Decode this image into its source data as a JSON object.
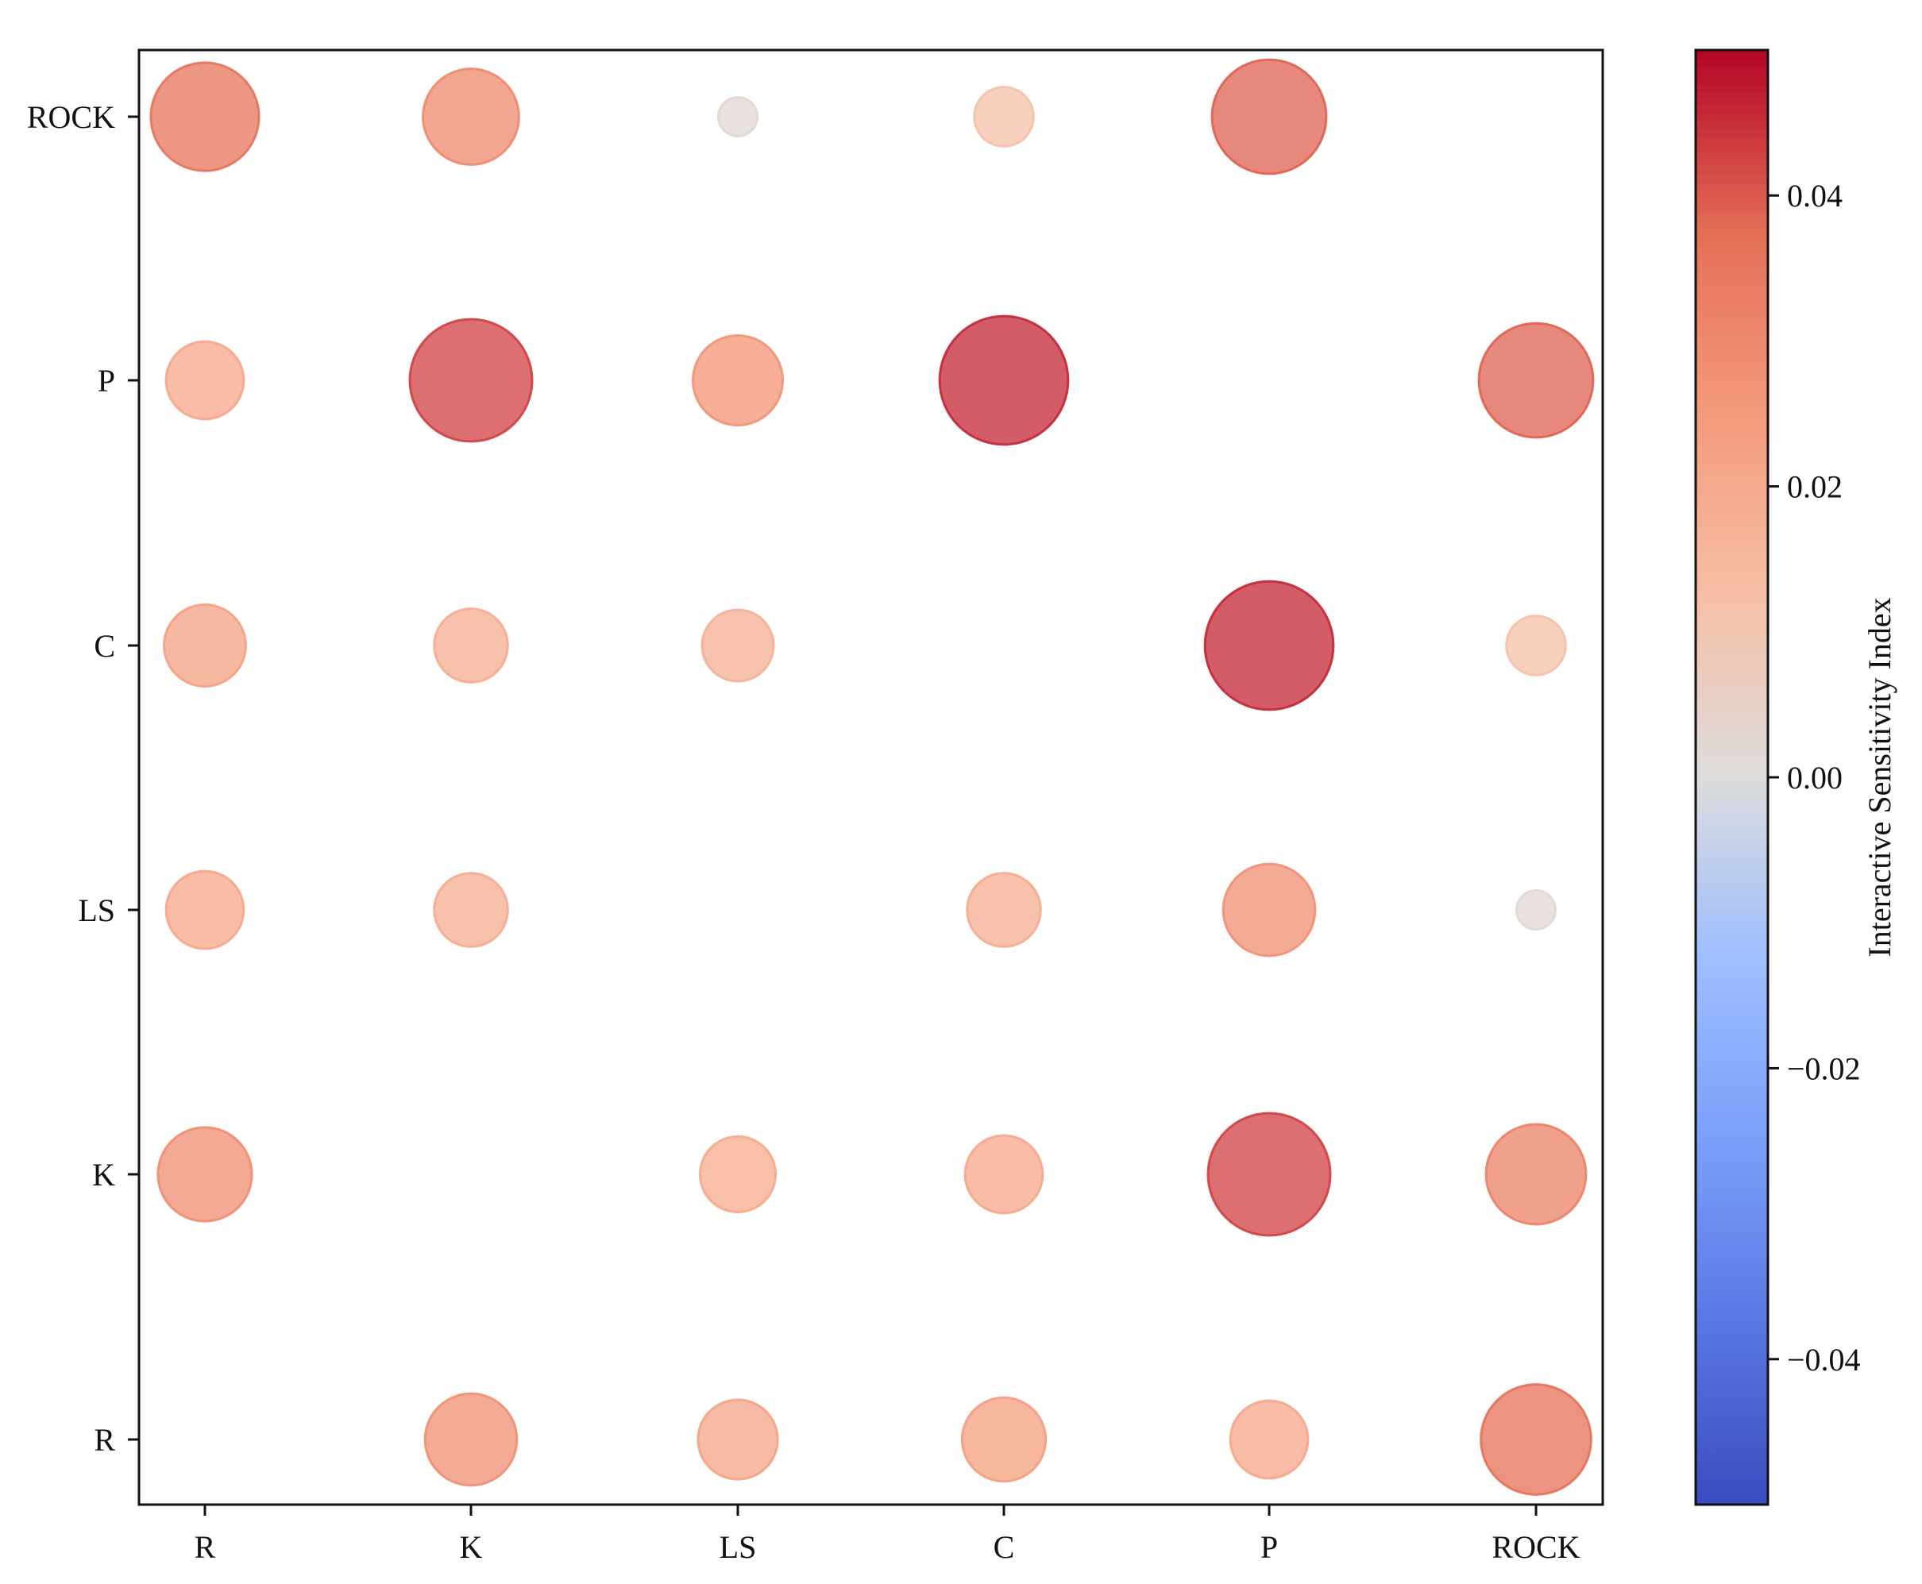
{
  "chart_data": {
    "type": "scatter",
    "title": "",
    "xlabel": "",
    "ylabel": "",
    "x_categories": [
      "R",
      "K",
      "LS",
      "C",
      "P",
      "ROCK"
    ],
    "y_categories": [
      "R",
      "K",
      "LS",
      "C",
      "P",
      "ROCK"
    ],
    "points": [
      {
        "x": "R",
        "y": "ROCK",
        "value": 0.036
      },
      {
        "x": "K",
        "y": "ROCK",
        "value": 0.03
      },
      {
        "x": "LS",
        "y": "ROCK",
        "value": 0.002
      },
      {
        "x": "C",
        "y": "ROCK",
        "value": 0.012
      },
      {
        "x": "P",
        "y": "ROCK",
        "value": 0.039
      },
      {
        "x": "R",
        "y": "P",
        "value": 0.021
      },
      {
        "x": "K",
        "y": "P",
        "value": 0.043
      },
      {
        "x": "LS",
        "y": "P",
        "value": 0.027
      },
      {
        "x": "C",
        "y": "P",
        "value": 0.046
      },
      {
        "x": "ROCK",
        "y": "P",
        "value": 0.039
      },
      {
        "x": "R",
        "y": "C",
        "value": 0.023
      },
      {
        "x": "K",
        "y": "C",
        "value": 0.019
      },
      {
        "x": "LS",
        "y": "C",
        "value": 0.018
      },
      {
        "x": "P",
        "y": "C",
        "value": 0.046
      },
      {
        "x": "ROCK",
        "y": "C",
        "value": 0.012
      },
      {
        "x": "R",
        "y": "LS",
        "value": 0.021
      },
      {
        "x": "K",
        "y": "LS",
        "value": 0.019
      },
      {
        "x": "C",
        "y": "LS",
        "value": 0.019
      },
      {
        "x": "P",
        "y": "LS",
        "value": 0.028
      },
      {
        "x": "ROCK",
        "y": "LS",
        "value": 0.002
      },
      {
        "x": "R",
        "y": "K",
        "value": 0.029
      },
      {
        "x": "LS",
        "y": "K",
        "value": 0.02
      },
      {
        "x": "C",
        "y": "K",
        "value": 0.021
      },
      {
        "x": "P",
        "y": "K",
        "value": 0.043
      },
      {
        "x": "ROCK",
        "y": "K",
        "value": 0.032
      },
      {
        "x": "K",
        "y": "R",
        "value": 0.028
      },
      {
        "x": "LS",
        "y": "R",
        "value": 0.022
      },
      {
        "x": "C",
        "y": "R",
        "value": 0.024
      },
      {
        "x": "P",
        "y": "R",
        "value": 0.021
      },
      {
        "x": "ROCK",
        "y": "R",
        "value": 0.037
      }
    ],
    "colorbar": {
      "label": "Interactive Sensitivity Index",
      "min": -0.05,
      "max": 0.05,
      "ticks": [
        0.04,
        0.02,
        0.0,
        -0.02,
        -0.04
      ],
      "tick_labels": [
        "0.04",
        "0.02",
        "0.00",
        "−0.02",
        "−0.04"
      ],
      "colormap": "coolwarm"
    },
    "grid": false,
    "legend": "none"
  }
}
